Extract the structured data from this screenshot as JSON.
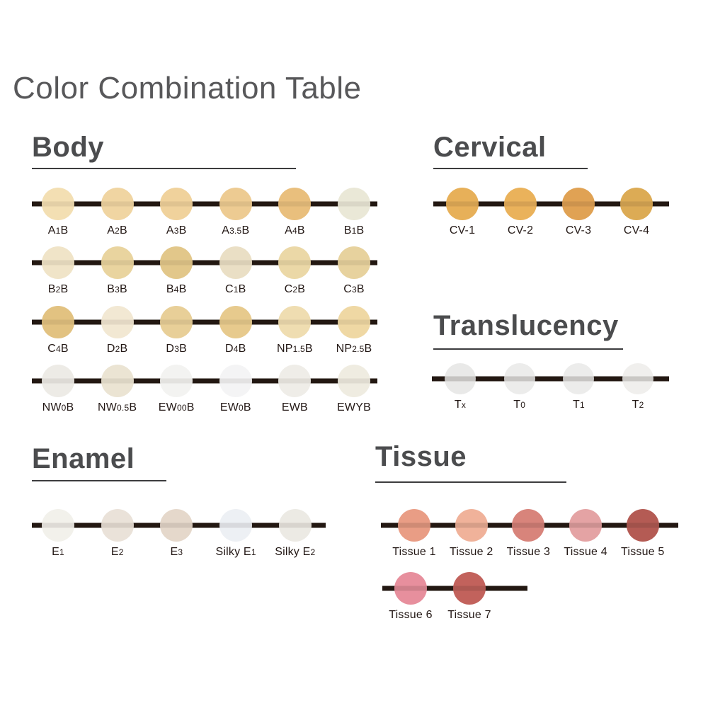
{
  "title": "Color Combination Table",
  "line_color": "#231812",
  "label_color": "#231815",
  "heading_color": "#4B4C4E",
  "sections": {
    "body": {
      "heading": "Body",
      "rows": [
        [
          {
            "label": "A1B",
            "color": "#F3DFB3"
          },
          {
            "label": "A2B",
            "color": "#F0D5A2"
          },
          {
            "label": "A3B",
            "color": "#F0D29C"
          },
          {
            "label": "A3.5B",
            "color": "#EDCB92"
          },
          {
            "label": "A4B",
            "color": "#E9BF7D"
          },
          {
            "label": "B1B",
            "color": "#EAE8D7"
          }
        ],
        [
          {
            "label": "B2B",
            "color": "#F0E4C8"
          },
          {
            "label": "B3B",
            "color": "#E9D49F"
          },
          {
            "label": "B4B",
            "color": "#E2C78A"
          },
          {
            "label": "C1B",
            "color": "#EADFC5"
          },
          {
            "label": "C2B",
            "color": "#EBD8A7"
          },
          {
            "label": "C3B",
            "color": "#E7D29E"
          }
        ],
        [
          {
            "label": "C4B",
            "color": "#E2C281"
          },
          {
            "label": "D2B",
            "color": "#F2E8D3"
          },
          {
            "label": "D3B",
            "color": "#E8CF98"
          },
          {
            "label": "D4B",
            "color": "#E7CA8D"
          },
          {
            "label": "NP1.5B",
            "color": "#EFDDB1"
          },
          {
            "label": "NP2.5B",
            "color": "#EFD8A4"
          }
        ],
        [
          {
            "label": "NW0B",
            "color": "#EDEBE6"
          },
          {
            "label": "NW0.5B",
            "color": "#EBE4D3"
          },
          {
            "label": "EW00B",
            "color": "#F3F3F1"
          },
          {
            "label": "EW0B",
            "color": "#F4F4F5"
          },
          {
            "label": "EWB",
            "color": "#EFEDE8"
          },
          {
            "label": "EWYB",
            "color": "#EFECE1"
          }
        ]
      ]
    },
    "cervical": {
      "heading": "Cervical",
      "rows": [
        [
          {
            "label": "CV-1",
            "color": "#E7B059"
          },
          {
            "label": "CV-2",
            "color": "#EAB25B"
          },
          {
            "label": "CV-3",
            "color": "#E0A254"
          },
          {
            "label": "CV-4",
            "color": "#DCAB55"
          }
        ]
      ]
    },
    "translucency": {
      "heading": "Translucency",
      "rows": [
        [
          {
            "label": "Tx",
            "color": "#E9E9E8"
          },
          {
            "label": "T0",
            "color": "#ECECEB"
          },
          {
            "label": "T1",
            "color": "#ECECEB"
          },
          {
            "label": "T2",
            "color": "#F0EFED"
          }
        ]
      ]
    },
    "enamel": {
      "heading": "Enamel",
      "rows": [
        [
          {
            "label": "E1",
            "color": "#F2F1EB"
          },
          {
            "label": "E2",
            "color": "#EAE2D9"
          },
          {
            "label": "E3",
            "color": "#E5D8CB"
          },
          {
            "label": "Silky E1",
            "color": "#EDF0F4"
          },
          {
            "label": "Silky E2",
            "color": "#ECEAE4"
          }
        ]
      ]
    },
    "tissue": {
      "heading": "Tissue",
      "rows": [
        [
          {
            "label": "Tissue 1",
            "color": "#E99D85"
          },
          {
            "label": "Tissue 2",
            "color": "#F0B29A"
          },
          {
            "label": "Tissue 3",
            "color": "#D8847B"
          },
          {
            "label": "Tissue 4",
            "color": "#E4A3A4"
          },
          {
            "label": "Tissue 5",
            "color": "#B45B54"
          }
        ],
        [
          {
            "label": "Tissue 6",
            "color": "#E78F9D"
          },
          {
            "label": "Tissue 7",
            "color": "#C2625C"
          }
        ]
      ]
    }
  }
}
